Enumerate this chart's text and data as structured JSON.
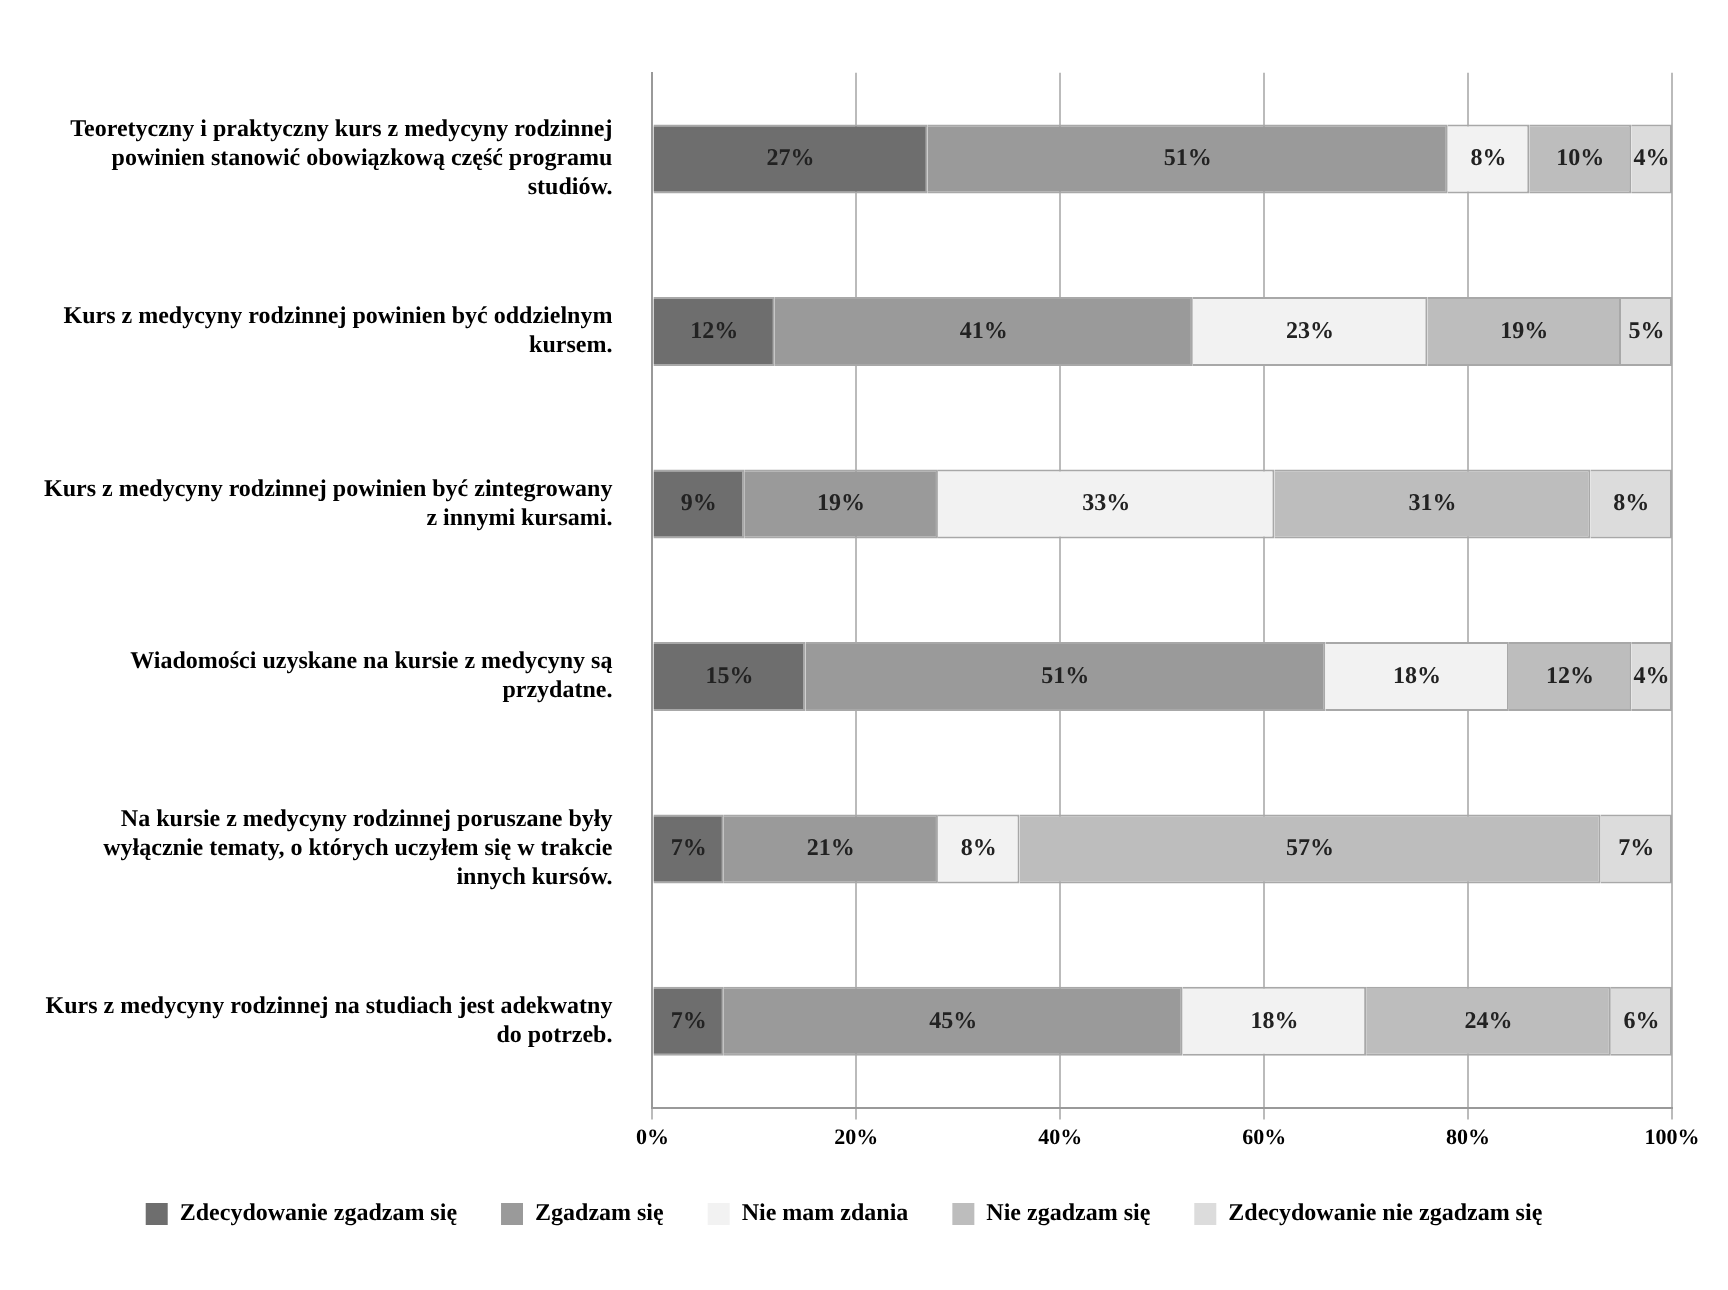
{
  "chart_data": {
    "type": "bar",
    "orientation": "horizontal",
    "stacked": true,
    "categories": [
      "Teoretyczny i praktyczny kurs z medycyny rodzinnej powinien stanowić obowiązkową część programu studiów.",
      "Kurs z medycyny rodzinnej powinien być oddzielnym kursem.",
      "Kurs z medycyny rodzinnej powinien być zintegrowany z innymi kursami.",
      "Wiadomości uzyskane na kursie z medycyny są przydatne.",
      "Na kursie z medycyny rodzinnej poruszane były wyłącznie tematy, o których uczyłem się w trakcie innych kursów.",
      "Kurs z medycyny rodzinnej na studiach jest adekwatny do potrzeb."
    ],
    "series": [
      {
        "name": "Zdecydowanie zgadzam się",
        "color": "#6e6e6e",
        "values": [
          27,
          12,
          9,
          15,
          7,
          7
        ],
        "value_labels": [
          "27%",
          "12%",
          "9%",
          "15%",
          "7%",
          "7%"
        ]
      },
      {
        "name": "Zgadzam się",
        "color": "#9a9a9a",
        "values": [
          51,
          41,
          19,
          51,
          21,
          45
        ],
        "value_labels": [
          "51%",
          "41%",
          "19%",
          "51%",
          "21%",
          "45%"
        ]
      },
      {
        "name": "Nie mam zdania",
        "color": "#f2f2f2",
        "values": [
          8,
          23,
          33,
          18,
          8,
          18
        ],
        "value_labels": [
          "8%",
          "23%",
          "33%",
          "18%",
          "8%",
          "18%"
        ]
      },
      {
        "name": "Nie zgadzam się",
        "color": "#bdbdbd",
        "values": [
          10,
          19,
          31,
          12,
          57,
          24
        ],
        "value_labels": [
          "10%",
          "19%",
          "31%",
          "12%",
          "57%",
          "24%"
        ]
      },
      {
        "name": "Zdecydowanie nie zgadzam się",
        "color": "#dcdcdc",
        "values": [
          4,
          5,
          8,
          4,
          7,
          6
        ],
        "value_labels": [
          "4%",
          "5%",
          "8%",
          "4%",
          "7%",
          "6%"
        ]
      }
    ],
    "xlim": [
      0,
      100
    ],
    "xticks": [
      {
        "value": 0,
        "label": "0%"
      },
      {
        "value": 20,
        "label": "20%"
      },
      {
        "value": 40,
        "label": "40%"
      },
      {
        "value": 60,
        "label": "60%"
      },
      {
        "value": 80,
        "label": "80%"
      },
      {
        "value": 100,
        "label": "100%"
      }
    ],
    "grid": "x",
    "legend": "bottom"
  }
}
